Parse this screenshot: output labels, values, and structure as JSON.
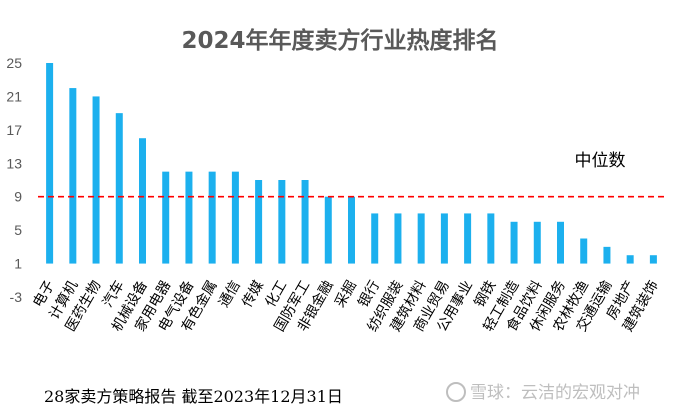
{
  "chart_data": {
    "type": "bar",
    "title": "2024年年度卖方行业热度排名",
    "xlabel": "",
    "ylabel": "",
    "ylim": [
      -3,
      25
    ],
    "yticks": [
      -3,
      1,
      5,
      9,
      13,
      17,
      21,
      25
    ],
    "grid": false,
    "bar_color": "#1cb0ee",
    "categories": [
      "电子",
      "计算机",
      "医药生物",
      "汽车",
      "机械设备",
      "家用电器",
      "电气设备",
      "有色金属",
      "通信",
      "传媒",
      "化工",
      "国防军工",
      "非银金融",
      "采掘",
      "银行",
      "纺织服装",
      "建筑材料",
      "商业贸易",
      "公用事业",
      "钢铁",
      "轻工制造",
      "食品饮料",
      "休闲服务",
      "农林牧渔",
      "交通运输",
      "房地产",
      "建筑装饰"
    ],
    "values": [
      25,
      22,
      21,
      19,
      16,
      12,
      12,
      12,
      12,
      11,
      11,
      11,
      9,
      9,
      7,
      7,
      7,
      7,
      7,
      7,
      6,
      6,
      6,
      4,
      3,
      2,
      2
    ],
    "median": {
      "label": "中位数",
      "value": 9,
      "color": "#ff0000"
    }
  },
  "footnote": "28家卖方策略报告 截至2023年12月31日",
  "watermark": "雪球：云洁的宏观对冲"
}
